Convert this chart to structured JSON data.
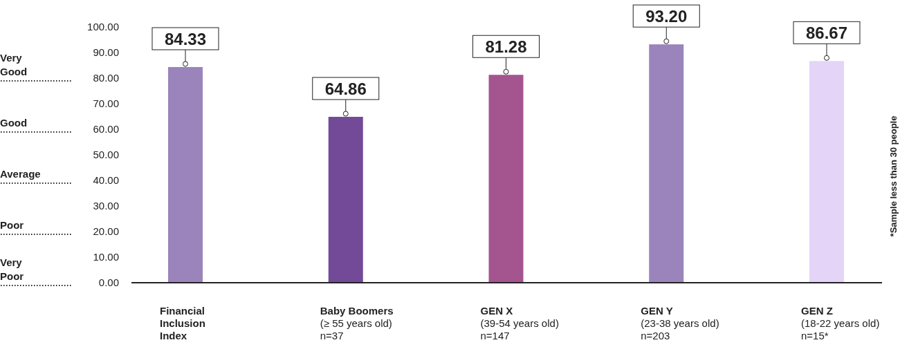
{
  "chart_data": {
    "type": "bar",
    "categories": [
      "Financial Inclusion Index",
      "Baby Boomers\n(≥ 55 years old)\nn=37",
      "GEN X\n(39-54 years old)\nn=147",
      "GEN Y\n(23-38 years old)\nn=203",
      "GEN Z\n(18-22 years old)\nn=15*"
    ],
    "values": [
      84.33,
      64.86,
      81.28,
      93.2,
      86.67
    ],
    "colors": [
      "#9b84bb",
      "#734a97",
      "#a4548f",
      "#9b84bb",
      "#e4d4f8"
    ],
    "value_labels": [
      "84.33",
      "64.86",
      "81.28",
      "93.20",
      "86.67"
    ],
    "ylim": [
      0,
      100
    ],
    "yticks": [
      {
        "value": 0,
        "label": "0.00"
      },
      {
        "value": 10,
        "label": "10.00"
      },
      {
        "value": 20,
        "label": "20.00"
      },
      {
        "value": 30,
        "label": "30.00"
      },
      {
        "value": 40,
        "label": "40.00"
      },
      {
        "value": 50,
        "label": "50.00"
      },
      {
        "value": 60,
        "label": "60.00"
      },
      {
        "value": 70,
        "label": "70.00"
      },
      {
        "value": 80,
        "label": "80.00"
      },
      {
        "value": 90,
        "label": "90.00"
      },
      {
        "value": 100,
        "label": "100.00"
      }
    ],
    "ref_lines": [
      {
        "axis": "y",
        "value": 0,
        "label": "Very\nPoor",
        "line_style": "dotted"
      },
      {
        "axis": "y",
        "value": 20,
        "label": "Poor",
        "line_style": "dotted"
      },
      {
        "axis": "y",
        "value": 40,
        "label": "Average",
        "line_style": "dotted"
      },
      {
        "axis": "y",
        "value": 60,
        "label": "Good",
        "line_style": "dotted"
      },
      {
        "axis": "y",
        "value": 80,
        "label": "Very\nGood",
        "line_style": "dotted"
      }
    ],
    "annotations": [
      "*Sample less than 30 people"
    ],
    "grid": false
  }
}
